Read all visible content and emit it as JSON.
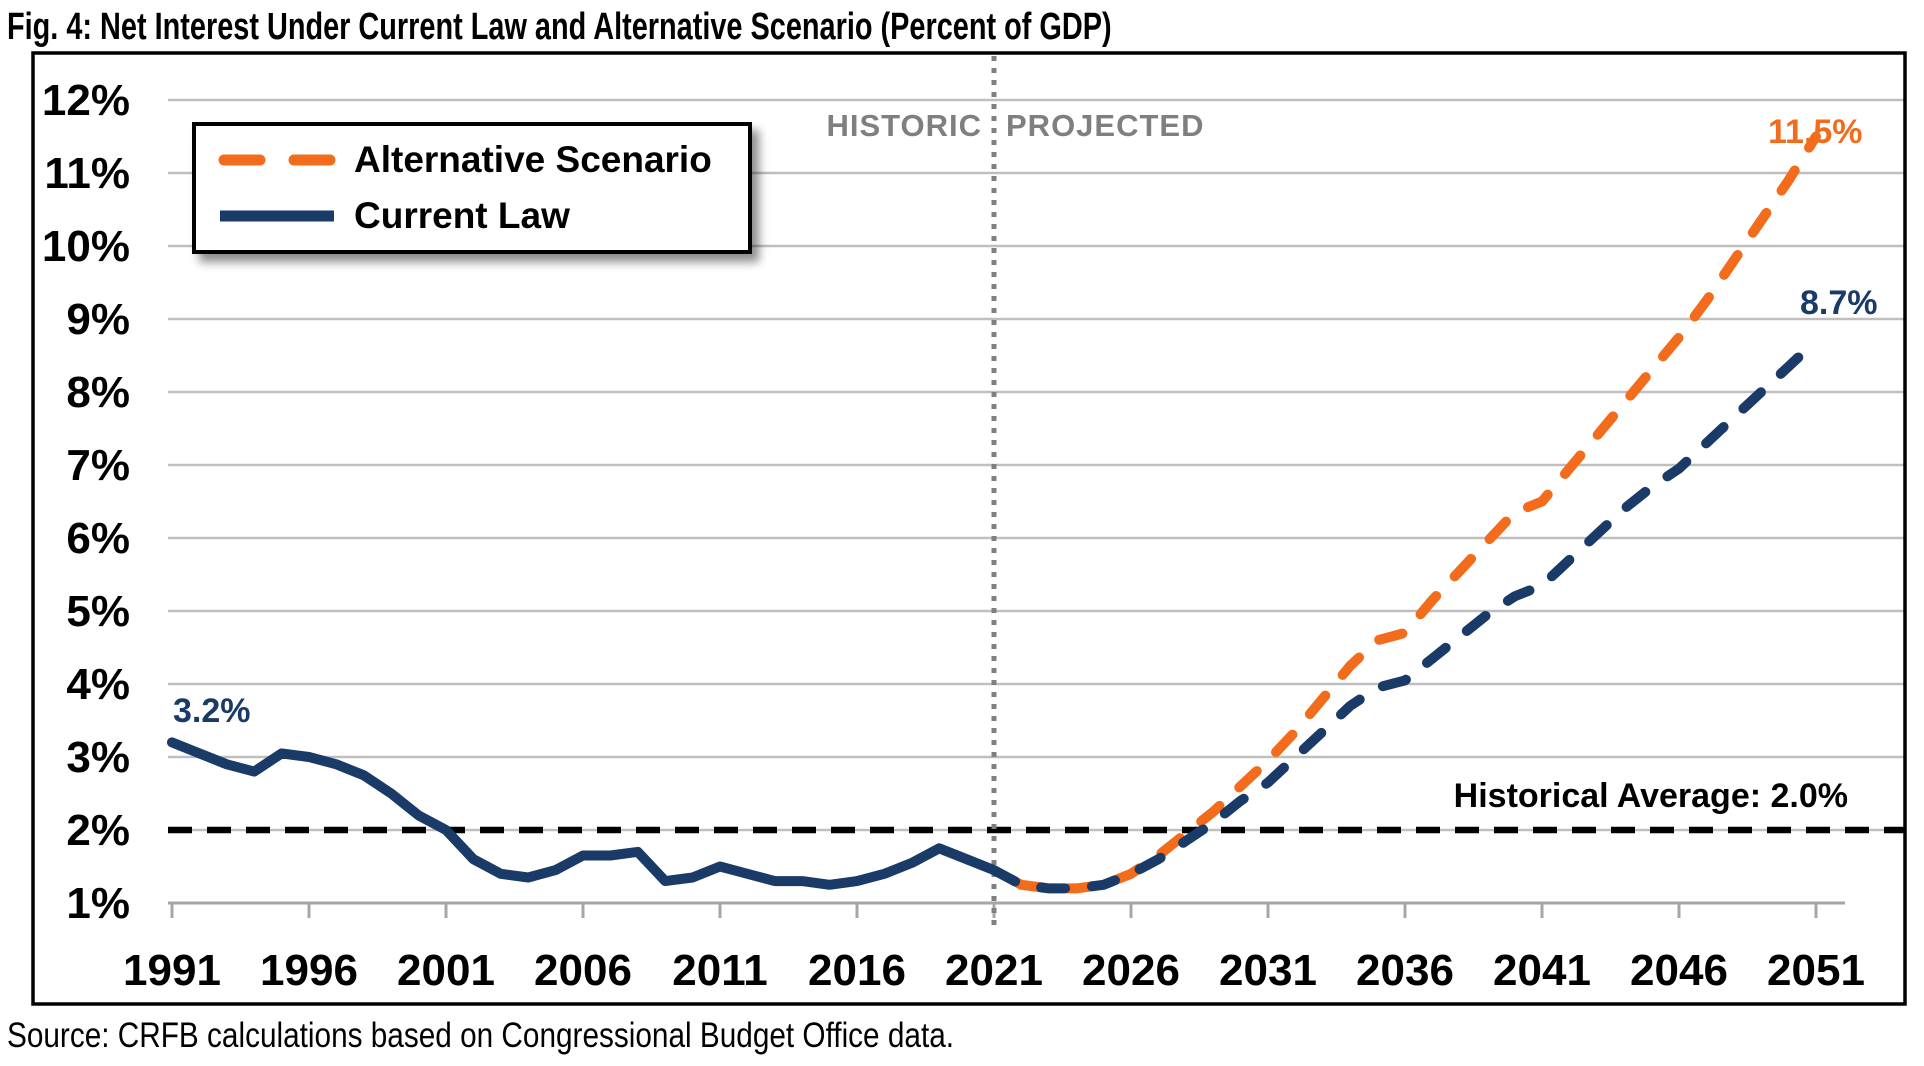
{
  "figure": {
    "title": "Fig. 4: Net Interest Under Current Law and Alternative Scenario (Percent of GDP)",
    "source": "Source: CRFB calculations based on Congressional Budget Office data."
  },
  "colors": {
    "navy": "#1A3A68",
    "orange": "#F26C1B",
    "grid": "#BFBFBF",
    "axis": "#A6A6A6",
    "divider": "#7F7F7F",
    "zone_text": "#7F7F7F",
    "black": "#000000"
  },
  "legend": {
    "items": [
      {
        "label": "Alternative Scenario",
        "color": "#F26C1B",
        "style": "dashed"
      },
      {
        "label": "Current Law",
        "color": "#1A3A68",
        "style": "solid"
      }
    ]
  },
  "annotations": {
    "historic_label": "HISTORIC",
    "projected_label": "PROJECTED",
    "divider_year": 2021,
    "start_value_label": "3.2%",
    "alternative_end_label": "11.5%",
    "current_law_end_label": "8.7%",
    "historical_average_label": "Historical Average: 2.0%",
    "historical_average_value": 2.0
  },
  "chart_data": {
    "type": "line",
    "title": "Fig. 4: Net Interest Under Current Law and Alternative Scenario (Percent of GDP)",
    "xlabel": "",
    "ylabel": "Percent of GDP",
    "xlim": [
      1991,
      2051
    ],
    "ylim": [
      1,
      12
    ],
    "grid": true,
    "legend_position": "top-left",
    "x_ticks": [
      1991,
      1996,
      2001,
      2006,
      2011,
      2016,
      2021,
      2026,
      2031,
      2036,
      2041,
      2046,
      2051
    ],
    "y_ticks": [
      {
        "value": 1,
        "label": "1%"
      },
      {
        "value": 2,
        "label": "2%"
      },
      {
        "value": 3,
        "label": "3%"
      },
      {
        "value": 4,
        "label": "4%"
      },
      {
        "value": 5,
        "label": "5%"
      },
      {
        "value": 6,
        "label": "6%"
      },
      {
        "value": 7,
        "label": "7%"
      },
      {
        "value": 8,
        "label": "8%"
      },
      {
        "value": 9,
        "label": "9%"
      },
      {
        "value": 10,
        "label": "10%"
      },
      {
        "value": 11,
        "label": "11%"
      },
      {
        "value": 12,
        "label": "12%"
      }
    ],
    "series": [
      {
        "name": "Current Law (historic)",
        "color": "#1A3A68",
        "dashed": false,
        "start_year": 1991,
        "values": [
          3.2,
          3.05,
          2.9,
          2.8,
          3.05,
          3.0,
          2.9,
          2.75,
          2.5,
          2.2,
          2.0,
          1.6,
          1.4,
          1.35,
          1.45,
          1.65,
          1.65,
          1.7,
          1.3,
          1.35,
          1.5,
          1.4,
          1.3,
          1.3,
          1.25,
          1.3,
          1.4,
          1.55,
          1.75,
          1.6,
          1.45
        ]
      },
      {
        "name": "Alternative Scenario (projected)",
        "color": "#F26C1B",
        "dashed": true,
        "start_year": 2021,
        "values": [
          1.45,
          1.25,
          1.2,
          1.2,
          1.25,
          1.4,
          1.65,
          1.95,
          2.25,
          2.6,
          2.95,
          3.35,
          3.8,
          4.25,
          4.6,
          4.7,
          5.15,
          5.55,
          5.95,
          6.35,
          6.5,
          6.95,
          7.4,
          7.85,
          8.3,
          8.75,
          9.25,
          9.8,
          10.35,
          10.9,
          11.5
        ]
      },
      {
        "name": "Current Law (projected)",
        "color": "#1A3A68",
        "dashed": true,
        "start_year": 2021,
        "values": [
          1.45,
          1.25,
          1.2,
          1.2,
          1.25,
          1.4,
          1.6,
          1.85,
          2.1,
          2.4,
          2.65,
          3.0,
          3.35,
          3.7,
          3.95,
          4.05,
          4.35,
          4.65,
          4.95,
          5.2,
          5.35,
          5.7,
          6.05,
          6.4,
          6.7,
          6.95,
          7.3,
          7.65,
          8.0,
          8.35,
          8.7
        ]
      }
    ],
    "end_labels": {
      "alternative": 11.5,
      "current_law": 8.7,
      "start": 3.2
    }
  }
}
